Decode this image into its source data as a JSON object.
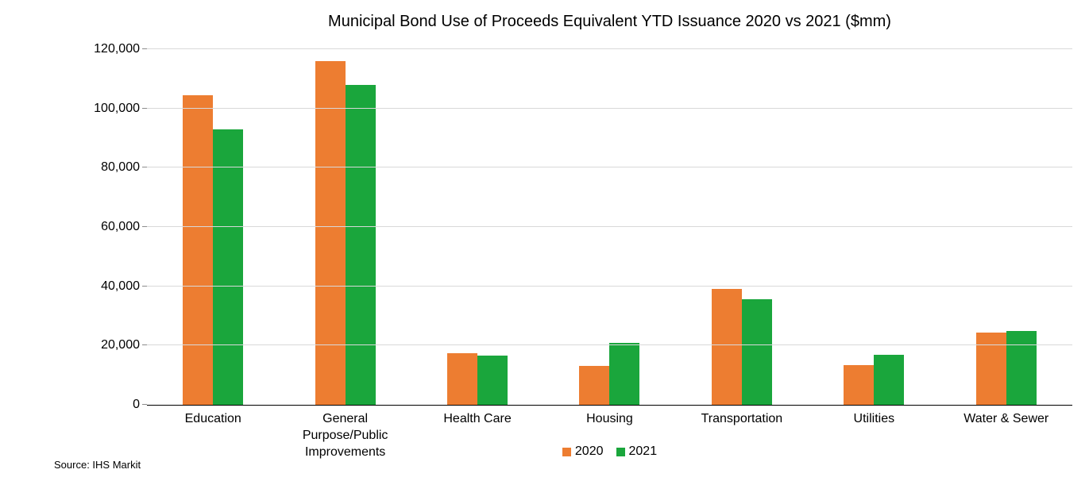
{
  "source": "Source: IHS Markit",
  "colors": {
    "series_2020": "#ED7D31",
    "series_2021": "#1AA63C",
    "gridline": "#D9D9D9",
    "axis": "#000000",
    "tick": "#8C8C8C",
    "text": "#000000"
  },
  "chart_data": {
    "type": "bar",
    "title": "Municipal Bond Use of Proceeds Equivalent YTD Issuance 2020 vs 2021 ($mm)",
    "categories": [
      "Education",
      "General Purpose/Public Improvements",
      "Health Care",
      "Housing",
      "Transportation",
      "Utilities",
      "Water & Sewer"
    ],
    "series": [
      {
        "name": "2020",
        "color": "#ED7D31",
        "values": [
          104500,
          116000,
          17500,
          13000,
          39000,
          13500,
          24500
        ]
      },
      {
        "name": "2021",
        "color": "#1AA63C",
        "values": [
          93000,
          108000,
          16500,
          21000,
          35500,
          17000,
          25000
        ]
      }
    ],
    "xlabel": "",
    "ylabel": "",
    "ylim": [
      0,
      120000
    ],
    "ytick_values": [
      0,
      20000,
      40000,
      60000,
      80000,
      100000,
      120000
    ],
    "ytick_labels": [
      "0",
      "20,000",
      "40,000",
      "60,000",
      "80,000",
      "100,000",
      "120,000"
    ],
    "grid": true,
    "legend_position": "bottom"
  }
}
